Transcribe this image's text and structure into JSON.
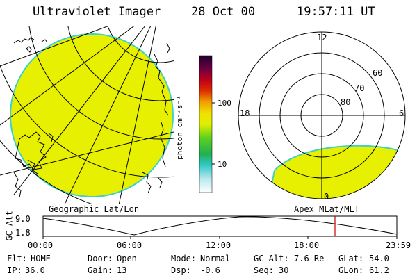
{
  "header": {
    "instrument": "Ultraviolet Imager",
    "date": "28 Oct 00",
    "time": "19:57:11 UT"
  },
  "colorbar": {
    "unit_label": "photon cm⁻²s⁻¹",
    "ticks": [
      "100",
      "10"
    ]
  },
  "geo_panel": {
    "label": "Geographic Lat/Lon"
  },
  "polar_panel": {
    "label": "Apex MLat/MLT",
    "mlt_labels": {
      "top": "12",
      "bottom": "0",
      "left": "18",
      "right": "6"
    },
    "mlat_labels": [
      "60",
      "70",
      "80"
    ]
  },
  "altitude_plot": {
    "ylabel": "GC Alt",
    "yticks": [
      "9.0",
      "1.8"
    ],
    "xticks": [
      "00:00",
      "06:00",
      "12:00",
      "18:00",
      "23:59"
    ]
  },
  "status": {
    "row1": [
      {
        "label": "Flt:",
        "value": "HOME"
      },
      {
        "label": "Door:",
        "value": "Open"
      },
      {
        "label": "Mode:",
        "value": "Normal"
      },
      {
        "label": "GC Alt:",
        "value": "7.6 Re"
      },
      {
        "label": "GLat:",
        "value": "54.0"
      }
    ],
    "row2": [
      {
        "label": "IP:",
        "value": "36.0"
      },
      {
        "label": "Gain:",
        "value": "13"
      },
      {
        "label": "Dsp:",
        "value": "-0.6"
      },
      {
        "label": "Seq:",
        "value": "30"
      },
      {
        "label": "GLon:",
        "value": "61.2"
      }
    ]
  },
  "colors": {
    "aurora_fill": "#e6f000",
    "aurora_edge": "#3fd0c8",
    "marker": "#cc0000"
  }
}
